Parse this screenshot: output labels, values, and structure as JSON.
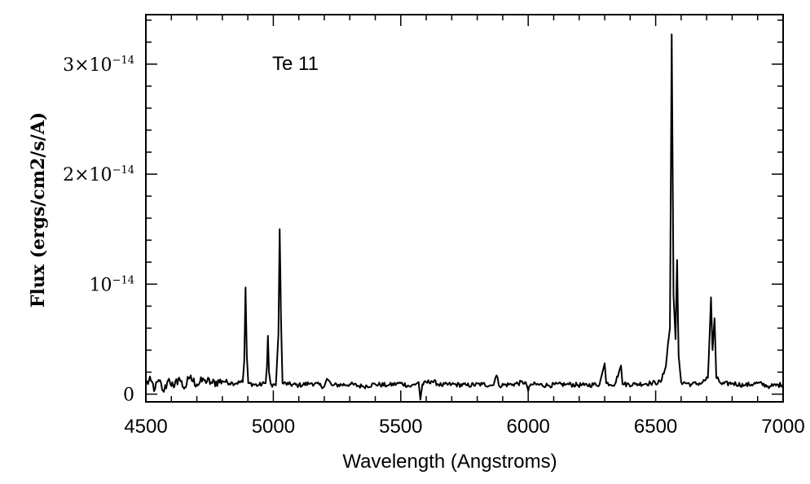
{
  "chart_data": {
    "type": "line",
    "xlabel": "Wavelength (Angstroms)",
    "ylabel": "Flux (ergs/cm2/s/A)",
    "annotation": "Te 11",
    "xlim": [
      4500,
      7000
    ],
    "ylim": [
      -7e-16,
      3.45e-14
    ],
    "x_ticks": [
      4500,
      5000,
      5500,
      6000,
      6500,
      7000
    ],
    "x_tick_labels": [
      "4500",
      "5000",
      "5500",
      "6000",
      "6500",
      "7000"
    ],
    "y_ticks": [
      0,
      1e-14,
      2e-14,
      3e-14
    ],
    "y_tick_labels": [
      {
        "mantissa": "0",
        "exponent": ""
      },
      {
        "mantissa": "10",
        "exponent": "−14"
      },
      {
        "mantissa": "2×10",
        "exponent": "−14"
      },
      {
        "mantissa": "3×10",
        "exponent": "−14"
      }
    ],
    "series": [
      {
        "line_color": "#000000",
        "continuum": 9e-16,
        "points": [
          [
            4500,
            1e-15
          ],
          [
            4520,
            1.2e-15
          ],
          [
            4535,
            4e-16
          ],
          [
            4550,
            1.3e-15
          ],
          [
            4570,
            2e-16
          ],
          [
            4590,
            1.4e-15
          ],
          [
            4610,
            6e-16
          ],
          [
            4630,
            1.5e-15
          ],
          [
            4650,
            5e-16
          ],
          [
            4670,
            1.5e-15
          ],
          [
            4700,
            9e-16
          ],
          [
            4730,
            1.3e-15
          ],
          [
            4760,
            1e-15
          ],
          [
            4800,
            1.2e-15
          ],
          [
            4840,
            1e-15
          ],
          [
            4880,
            1.1e-15
          ],
          [
            4886,
            3e-15
          ],
          [
            4891,
            9.7e-15
          ],
          [
            4896,
            3.5e-15
          ],
          [
            4902,
            1e-15
          ],
          [
            4940,
            8e-16
          ],
          [
            4970,
            1e-15
          ],
          [
            4975,
            2.5e-15
          ],
          [
            4979,
            5.3e-15
          ],
          [
            4983,
            2e-15
          ],
          [
            4990,
            9e-16
          ],
          [
            5010,
            8e-16
          ],
          [
            5020,
            5.5e-15
          ],
          [
            5025,
            1.5e-14
          ],
          [
            5030,
            7e-15
          ],
          [
            5036,
            1e-15
          ],
          [
            5060,
            9e-16
          ],
          [
            5100,
            8e-16
          ],
          [
            5150,
            1e-15
          ],
          [
            5200,
            7e-16
          ],
          [
            5210,
            1.4e-15
          ],
          [
            5230,
            8e-16
          ],
          [
            5300,
            9e-16
          ],
          [
            5350,
            7e-16
          ],
          [
            5400,
            9e-16
          ],
          [
            5450,
            8e-16
          ],
          [
            5500,
            1e-15
          ],
          [
            5540,
            7e-16
          ],
          [
            5570,
            1.1e-15
          ],
          [
            5577,
            -5e-16
          ],
          [
            5585,
            9e-16
          ],
          [
            5620,
            1.2e-15
          ],
          [
            5660,
            8e-16
          ],
          [
            5700,
            9e-16
          ],
          [
            5760,
            8e-16
          ],
          [
            5820,
            9e-16
          ],
          [
            5860,
            8e-16
          ],
          [
            5876,
            1.7e-15
          ],
          [
            5885,
            8e-16
          ],
          [
            5940,
            9e-16
          ],
          [
            5990,
            1.1e-15
          ],
          [
            6000,
            3e-16
          ],
          [
            6010,
            9e-16
          ],
          [
            6080,
            8e-16
          ],
          [
            6150,
            9e-16
          ],
          [
            6220,
            8e-16
          ],
          [
            6280,
            9e-16
          ],
          [
            6300,
            2.8e-15
          ],
          [
            6306,
            1e-15
          ],
          [
            6340,
            9e-16
          ],
          [
            6364,
            2.6e-15
          ],
          [
            6370,
            9e-16
          ],
          [
            6420,
            9e-16
          ],
          [
            6480,
            1e-15
          ],
          [
            6520,
            1.1e-15
          ],
          [
            6540,
            2.5e-15
          ],
          [
            6548,
            4.5e-15
          ],
          [
            6556,
            6e-15
          ],
          [
            6563,
            3.27e-14
          ],
          [
            6570,
            9e-15
          ],
          [
            6578,
            5e-15
          ],
          [
            6584,
            1.22e-14
          ],
          [
            6590,
            3.5e-15
          ],
          [
            6600,
            1.1e-15
          ],
          [
            6640,
            9e-16
          ],
          [
            6680,
            1e-15
          ],
          [
            6705,
            1.5e-15
          ],
          [
            6712,
            5.5e-15
          ],
          [
            6717,
            8.8e-15
          ],
          [
            6723,
            4e-15
          ],
          [
            6731,
            6.9e-15
          ],
          [
            6738,
            1.5e-15
          ],
          [
            6760,
            9e-16
          ],
          [
            6800,
            1e-15
          ],
          [
            6850,
            8e-16
          ],
          [
            6900,
            1e-15
          ],
          [
            6950,
            7e-16
          ],
          [
            7000,
            9e-16
          ]
        ]
      }
    ]
  }
}
